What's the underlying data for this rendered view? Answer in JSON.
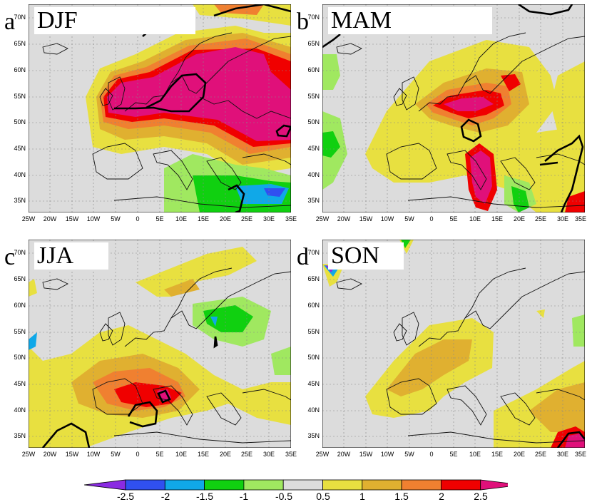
{
  "panels": [
    {
      "letter": "a",
      "title": "DJF"
    },
    {
      "letter": "b",
      "title": "MAM"
    },
    {
      "letter": "c",
      "title": "JJA"
    },
    {
      "letter": "d",
      "title": "SON"
    }
  ],
  "lat_labels": [
    "70N",
    "65N",
    "60N",
    "55N",
    "50N",
    "45N",
    "40N",
    "35N"
  ],
  "lon_labels": [
    "25W",
    "20W",
    "15W",
    "10W",
    "5W",
    "0",
    "5E",
    "10E",
    "15E",
    "20E",
    "25E",
    "30E",
    "35E"
  ],
  "colorbar": {
    "labels": [
      "-2.5",
      "-2",
      "-1.5",
      "-1",
      "-0.5",
      "0.5",
      "1",
      "1.5",
      "2",
      "2.5"
    ],
    "colors": [
      "#8a2be2",
      "#3050f0",
      "#10a8e8",
      "#10d010",
      "#a0e860",
      "#dcdcdc",
      "#e8e040",
      "#e0b030",
      "#f08030",
      "#f00000",
      "#e0107a"
    ]
  }
}
